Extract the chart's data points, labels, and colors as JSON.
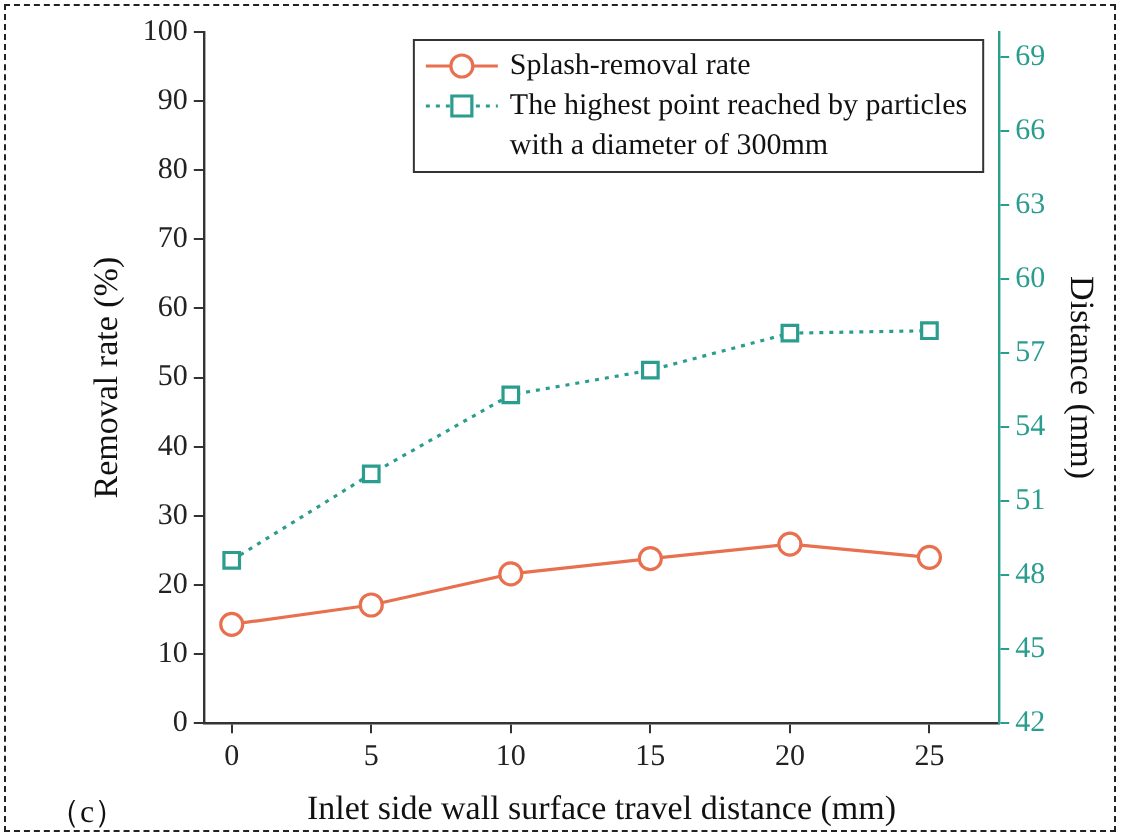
{
  "chart_data": {
    "type": "line",
    "xlabel": "Inlet side wall surface travel distance (mm)",
    "ylabel": "Removal rate (%)",
    "y2label": "Distance (mm)",
    "annotations": [
      "（c）"
    ],
    "x": [
      0,
      5,
      10,
      15,
      20,
      25
    ],
    "xlim": [
      -1,
      27.5
    ],
    "xticks": [
      0,
      5,
      10,
      15,
      20,
      25
    ],
    "ylim": [
      0,
      100
    ],
    "yticks": [
      0,
      10,
      20,
      30,
      40,
      50,
      60,
      70,
      80,
      90,
      100
    ],
    "y2lim": [
      42,
      70
    ],
    "y2ticks": [
      42,
      45,
      48,
      51,
      54,
      57,
      60,
      63,
      66,
      69
    ],
    "grid": false,
    "legend": "top right",
    "series": [
      {
        "name": "Splash-removal rate",
        "color": "#e8704f",
        "marker": "circle",
        "line_style": "solid",
        "values": [
          14.3,
          17.1,
          21.6,
          23.8,
          25.9,
          24.0
        ]
      },
      {
        "name": "The highest point reached by particles with a diameter of 300mm",
        "color": "#2a9d8f",
        "marker": "square",
        "line_style": "dotted",
        "axis": "y2",
        "values": [
          48.6,
          52.1,
          55.3,
          56.3,
          57.8,
          57.9
        ]
      }
    ]
  }
}
